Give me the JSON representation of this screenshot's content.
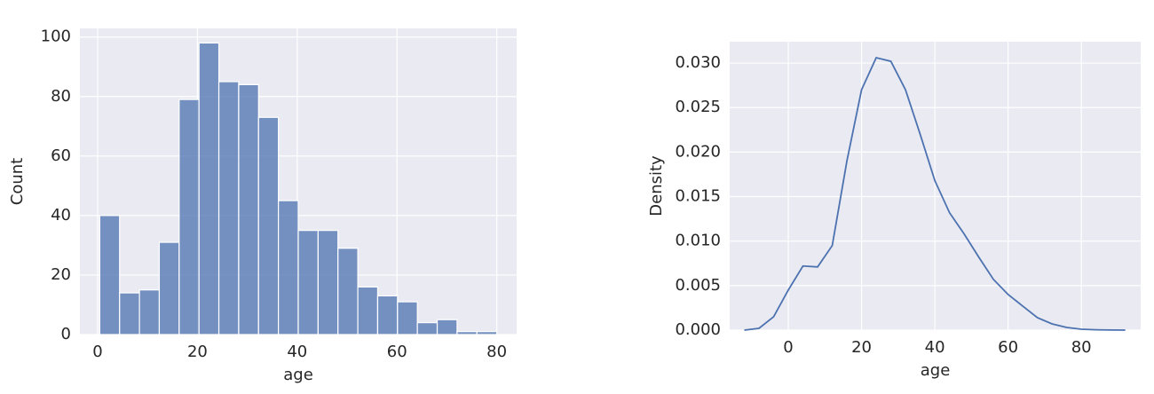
{
  "chart_data": [
    {
      "type": "histogram",
      "xlabel": "age",
      "ylabel": "Count",
      "color": "#4c72b0",
      "bins": [
        0.42,
        4.399,
        8.378,
        12.357,
        16.336,
        20.315,
        24.294,
        28.273,
        32.252,
        36.231,
        40.21,
        44.189,
        48.168,
        52.147,
        56.126,
        60.105,
        64.084,
        68.063,
        72.042,
        76.021,
        80.0
      ],
      "values": [
        40,
        14,
        15,
        31,
        79,
        98,
        85,
        84,
        73,
        45,
        35,
        35,
        29,
        16,
        13,
        11,
        4,
        5,
        1,
        1
      ],
      "xlim": [
        -3.56,
        83.98
      ],
      "ylim": [
        0,
        102.9
      ],
      "xticks": [
        0,
        20,
        40,
        60,
        80
      ],
      "yticks": [
        0,
        20,
        40,
        60,
        80,
        100
      ],
      "grid": true
    },
    {
      "type": "line",
      "xlabel": "age",
      "ylabel": "Density",
      "color": "#4c72b0",
      "x": [
        -12,
        -8,
        -4,
        0,
        4,
        8,
        12,
        16,
        20,
        24,
        28,
        32,
        36,
        40,
        44,
        48,
        52,
        56,
        60,
        64,
        68,
        72,
        76,
        80,
        84,
        88,
        92
      ],
      "values": [
        0,
        0.0002,
        0.0015,
        0.0045,
        0.0072,
        0.0071,
        0.0095,
        0.019,
        0.027,
        0.0306,
        0.0302,
        0.027,
        0.022,
        0.0168,
        0.0132,
        0.0108,
        0.0082,
        0.0057,
        0.004,
        0.0027,
        0.0014,
        0.0007,
        0.0003,
        0.0001,
        4e-05,
        1e-05,
        0
      ],
      "xlim": [
        -16,
        96.2
      ],
      "ylim": [
        0,
        0.0324
      ],
      "xticks": [
        0,
        20,
        40,
        60,
        80
      ],
      "yticks": [
        {
          "value": 0,
          "label": "0.000"
        },
        0.005,
        {
          "value": 0.01,
          "label": "0.010"
        },
        0.015,
        {
          "value": 0.02,
          "label": "0.020"
        },
        0.025,
        {
          "value": 0.03,
          "label": "0.030"
        }
      ],
      "grid": true
    }
  ]
}
